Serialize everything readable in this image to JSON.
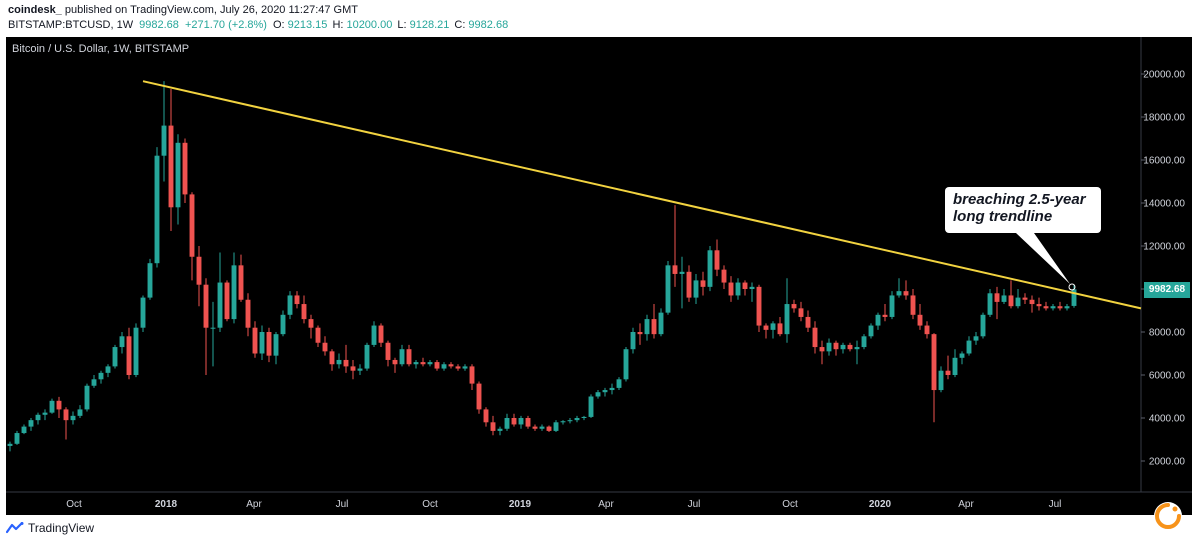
{
  "header": {
    "publisher": "coindesk_",
    "published_text": "published on TradingView.com, July 26, 2020 11:27:47 GMT",
    "symbol": "BITSTAMP:BTCUSD, 1W",
    "last": "9982.68",
    "change": "+271.70 (+2.8%)",
    "o_label": "O:",
    "o_value": "9213.15",
    "h_label": "H:",
    "h_value": "10200.00",
    "l_label": "L:",
    "l_value": "9128.21",
    "c_label": "C:",
    "c_value": "9982.68"
  },
  "footer": {
    "brand": "TradingView",
    "brand_icon": "tradingview-logo-icon",
    "corner_icon": "coindesk-logo-icon"
  },
  "colors": {
    "up": "#26a69a",
    "down": "#ef5350",
    "trendline": "#f2d340",
    "background": "#000000",
    "axis_text": "#d1d4dc"
  },
  "chart_data": {
    "type": "candlestick",
    "title": "Bitcoin / U.S. Dollar, 1W, BITSTAMP",
    "x_ticks": [
      "Oct",
      "2018",
      "Apr",
      "Jul",
      "Oct",
      "2019",
      "Apr",
      "Jul",
      "Oct",
      "2020",
      "Apr",
      "Jul"
    ],
    "y_ticks": [
      "20000.00",
      "18000.00",
      "16000.00",
      "14000.00",
      "12000.00",
      "10000.00",
      "8000.00",
      "6000.00",
      "4000.00",
      "2000.00"
    ],
    "ylim": [
      0,
      21000
    ],
    "grid": false,
    "last_price_label": "9982.68",
    "annotation": "breaching 2.5-year long trendline",
    "trendline": {
      "from": [
        "2017-12-17",
        19666
      ],
      "to": [
        "2020-09-27",
        9100
      ],
      "color": "#f2d340"
    },
    "candles_ohlc": [
      [
        2700,
        2900,
        2450,
        2800
      ],
      [
        2800,
        3400,
        2750,
        3300
      ],
      [
        3300,
        3700,
        3250,
        3600
      ],
      [
        3600,
        4000,
        3400,
        3900
      ],
      [
        3900,
        4250,
        3700,
        4150
      ],
      [
        4150,
        4400,
        3900,
        4250
      ],
      [
        4250,
        4900,
        4200,
        4800
      ],
      [
        4800,
        4980,
        4000,
        4400
      ],
      [
        4400,
        4500,
        3000,
        3900
      ],
      [
        3900,
        4300,
        3700,
        4100
      ],
      [
        4100,
        4600,
        4000,
        4400
      ],
      [
        4400,
        5600,
        4300,
        5500
      ],
      [
        5500,
        6000,
        5400,
        5800
      ],
      [
        5800,
        6200,
        5600,
        6100
      ],
      [
        6100,
        6500,
        5900,
        6400
      ],
      [
        6400,
        7400,
        6300,
        7300
      ],
      [
        7300,
        8000,
        7000,
        7800
      ],
      [
        7800,
        8200,
        5800,
        6000
      ],
      [
        6000,
        8400,
        5900,
        8200
      ],
      [
        8200,
        9700,
        8000,
        9600
      ],
      [
        9600,
        11400,
        9500,
        11200
      ],
      [
        11200,
        16600,
        11000,
        16200
      ],
      [
        16200,
        19666,
        15000,
        17600
      ],
      [
        17600,
        19300,
        12700,
        13800
      ],
      [
        13800,
        17200,
        13000,
        16800
      ],
      [
        16800,
        17000,
        14000,
        14400
      ],
      [
        14400,
        14500,
        10400,
        11500
      ],
      [
        11500,
        12000,
        9200,
        10200
      ],
      [
        10200,
        10500,
        6000,
        8200
      ],
      [
        8200,
        9400,
        6400,
        8200
      ],
      [
        8200,
        11700,
        8000,
        10300
      ],
      [
        10300,
        10400,
        8500,
        8600
      ],
      [
        8600,
        11700,
        8400,
        11100
      ],
      [
        11100,
        11600,
        9400,
        9500
      ],
      [
        9500,
        9800,
        7800,
        8200
      ],
      [
        8200,
        8500,
        6800,
        7000
      ],
      [
        7000,
        8300,
        6700,
        8000
      ],
      [
        8000,
        8200,
        6600,
        6900
      ],
      [
        6900,
        8000,
        6500,
        7900
      ],
      [
        7900,
        9000,
        7800,
        8800
      ],
      [
        8800,
        9900,
        8600,
        9700
      ],
      [
        9700,
        9900,
        9100,
        9300
      ],
      [
        9300,
        9700,
        8400,
        8600
      ],
      [
        8600,
        8800,
        7700,
        8200
      ],
      [
        8200,
        8300,
        7300,
        7500
      ],
      [
        7500,
        7800,
        6900,
        7100
      ],
      [
        7100,
        7200,
        6200,
        6500
      ],
      [
        6500,
        7000,
        6300,
        6700
      ],
      [
        6700,
        7400,
        6100,
        6400
      ],
      [
        6400,
        6700,
        5800,
        6200
      ],
      [
        6200,
        6500,
        6000,
        6300
      ],
      [
        6300,
        7500,
        6200,
        7400
      ],
      [
        7400,
        8500,
        7300,
        8300
      ],
      [
        8300,
        8400,
        7300,
        7500
      ],
      [
        7500,
        7600,
        6400,
        6700
      ],
      [
        6700,
        6800,
        6100,
        6500
      ],
      [
        6500,
        7400,
        6400,
        7200
      ],
      [
        7200,
        7400,
        6400,
        6500
      ],
      [
        6500,
        6700,
        6300,
        6600
      ],
      [
        6600,
        6800,
        6400,
        6500
      ],
      [
        6500,
        6700,
        6400,
        6600
      ],
      [
        6600,
        6700,
        6200,
        6300
      ],
      [
        6300,
        6600,
        6200,
        6500
      ],
      [
        6500,
        6600,
        6300,
        6400
      ],
      [
        6400,
        6500,
        6200,
        6300
      ],
      [
        6300,
        6500,
        6200,
        6400
      ],
      [
        6400,
        6500,
        5300,
        5600
      ],
      [
        5600,
        5700,
        4200,
        4400
      ],
      [
        4400,
        4500,
        3600,
        3800
      ],
      [
        3800,
        4100,
        3200,
        3400
      ],
      [
        3400,
        3600,
        3200,
        3500
      ],
      [
        3500,
        4200,
        3400,
        4000
      ],
      [
        4000,
        4200,
        3600,
        3700
      ],
      [
        3700,
        4100,
        3500,
        4000
      ],
      [
        4000,
        4100,
        3500,
        3600
      ],
      [
        3600,
        3700,
        3400,
        3500
      ],
      [
        3500,
        3700,
        3400,
        3600
      ],
      [
        3600,
        3650,
        3350,
        3400
      ],
      [
        3400,
        3900,
        3350,
        3800
      ],
      [
        3800,
        3900,
        3700,
        3850
      ],
      [
        3850,
        4000,
        3750,
        3900
      ],
      [
        3900,
        4100,
        3800,
        4000
      ],
      [
        4000,
        4100,
        3900,
        4050
      ],
      [
        4050,
        5100,
        4000,
        5000
      ],
      [
        5000,
        5300,
        4900,
        5200
      ],
      [
        5200,
        5400,
        5000,
        5300
      ],
      [
        5300,
        5600,
        5100,
        5400
      ],
      [
        5400,
        5900,
        5300,
        5800
      ],
      [
        5800,
        7300,
        5700,
        7200
      ],
      [
        7200,
        8200,
        7000,
        8000
      ],
      [
        8000,
        8400,
        7400,
        7900
      ],
      [
        7900,
        8800,
        7600,
        8600
      ],
      [
        8600,
        9300,
        7700,
        7900
      ],
      [
        7900,
        9100,
        7800,
        8900
      ],
      [
        8900,
        11300,
        8800,
        11100
      ],
      [
        11100,
        13900,
        10100,
        10700
      ],
      [
        10700,
        11500,
        9100,
        10800
      ],
      [
        10800,
        11100,
        9400,
        9600
      ],
      [
        9600,
        10700,
        9300,
        10400
      ],
      [
        10400,
        10800,
        9700,
        10100
      ],
      [
        10100,
        12000,
        9900,
        11800
      ],
      [
        11800,
        12300,
        10600,
        10900
      ],
      [
        10900,
        11100,
        10000,
        10300
      ],
      [
        10300,
        10600,
        9400,
        9700
      ],
      [
        9700,
        10500,
        9500,
        10300
      ],
      [
        10300,
        10400,
        9700,
        10000
      ],
      [
        10000,
        10300,
        9400,
        10100
      ],
      [
        10100,
        10200,
        8000,
        8300
      ],
      [
        8300,
        8400,
        7700,
        8100
      ],
      [
        8100,
        8500,
        7700,
        8400
      ],
      [
        8400,
        8700,
        7800,
        7900
      ],
      [
        7900,
        10500,
        7500,
        9300
      ],
      [
        9300,
        9500,
        8900,
        9100
      ],
      [
        9100,
        9400,
        8500,
        8700
      ],
      [
        8700,
        9000,
        8000,
        8200
      ],
      [
        8200,
        8500,
        7000,
        7300
      ],
      [
        7300,
        7600,
        6500,
        7100
      ],
      [
        7100,
        7700,
        6900,
        7500
      ],
      [
        7500,
        7600,
        6900,
        7200
      ],
      [
        7200,
        7500,
        7000,
        7400
      ],
      [
        7400,
        7500,
        7100,
        7200
      ],
      [
        7200,
        7600,
        6500,
        7300
      ],
      [
        7300,
        7900,
        7200,
        7800
      ],
      [
        7800,
        8400,
        7700,
        8300
      ],
      [
        8300,
        8900,
        8100,
        8800
      ],
      [
        8800,
        9300,
        8500,
        8700
      ],
      [
        8700,
        9900,
        8600,
        9700
      ],
      [
        9700,
        10500,
        9600,
        9900
      ],
      [
        9900,
        10400,
        9500,
        9700
      ],
      [
        9700,
        10000,
        8600,
        8800
      ],
      [
        8800,
        9300,
        8100,
        8300
      ],
      [
        8300,
        8500,
        7700,
        7900
      ],
      [
        7900,
        7950,
        3800,
        5300
      ],
      [
        5300,
        6400,
        5200,
        6200
      ],
      [
        6200,
        6900,
        5800,
        6000
      ],
      [
        6000,
        7200,
        5900,
        6800
      ],
      [
        6800,
        7100,
        6500,
        7000
      ],
      [
        7000,
        7800,
        6900,
        7600
      ],
      [
        7600,
        8000,
        7400,
        7800
      ],
      [
        7800,
        8900,
        7700,
        8800
      ],
      [
        8800,
        10000,
        8700,
        9800
      ],
      [
        9800,
        10100,
        8600,
        9400
      ],
      [
        9400,
        10000,
        9300,
        9700
      ],
      [
        9700,
        10400,
        9100,
        9200
      ],
      [
        9200,
        10000,
        9100,
        9600
      ],
      [
        9600,
        9800,
        9300,
        9500
      ],
      [
        9500,
        9700,
        8900,
        9300
      ],
      [
        9300,
        9600,
        9000,
        9200
      ],
      [
        9200,
        9400,
        9000,
        9100
      ],
      [
        9100,
        9300,
        9000,
        9200
      ],
      [
        9200,
        9400,
        9000,
        9100
      ],
      [
        9100,
        9300,
        9000,
        9200
      ],
      [
        9213.15,
        10200,
        9128.21,
        9982.68
      ]
    ]
  }
}
